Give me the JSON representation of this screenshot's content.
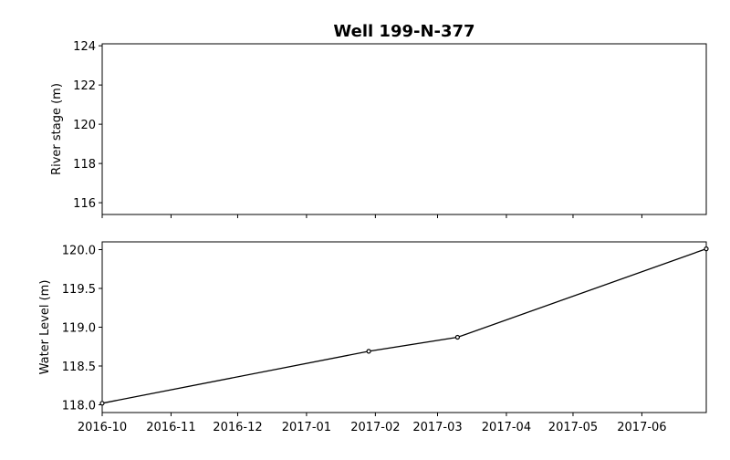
{
  "chart_data": [
    {
      "type": "line",
      "title": "Well 199-N-377",
      "ylabel": "River stage (m)",
      "xlabel": "",
      "ylim": [
        115.4,
        124.1
      ],
      "yticks": [
        "116",
        "118",
        "120",
        "122",
        "124"
      ],
      "series": []
    },
    {
      "type": "line",
      "title": "",
      "ylabel": "Water Level (m)",
      "xlabel": "",
      "ylim": [
        117.9,
        120.1
      ],
      "yticks": [
        "118.0",
        "118.5",
        "119.0",
        "119.5",
        "120.0"
      ],
      "xticks": [
        "2016-10",
        "2016-11",
        "2016-12",
        "2017-01",
        "2017-02",
        "2017-03",
        "2017-04",
        "2017-05",
        "2017-06"
      ],
      "series": [
        {
          "name": "Water Level",
          "x": [
            "2016-10-01",
            "2017-01-29",
            "2017-03-10",
            "2017-06-30"
          ],
          "values": [
            118.02,
            118.69,
            118.87,
            120.01
          ]
        }
      ]
    }
  ]
}
